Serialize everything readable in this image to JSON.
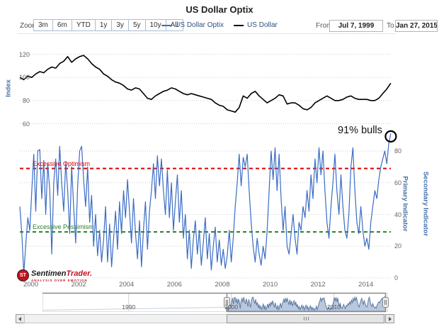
{
  "title": "US Dollar Optix",
  "toolbar": {
    "zoom_label": "Zoom",
    "buttons": [
      "3m",
      "6m",
      "YTD",
      "1y",
      "3y",
      "5y",
      "10y",
      "All"
    ],
    "from_label": "From",
    "from_value": "Jul 7, 1999",
    "to_label": "To",
    "to_value": "Jan 27, 2015"
  },
  "legend": [
    {
      "label": "US Dollar Optix",
      "color": "#3a6cc5"
    },
    {
      "label": "US Dollar",
      "color": "#000000"
    }
  ],
  "branding": {
    "badge": "ST",
    "name_main": "Sentimen",
    "name_accent": "Trader.",
    "tagline": "ANALYSIS OVER EMOTION"
  },
  "chart_data": {
    "type": "line",
    "title": "US Dollar Optix",
    "x_start_year": 1999.54,
    "x_end_year": 2015.07,
    "axes": {
      "index_pane": {
        "title": "Index",
        "ticks": [
          120,
          100,
          80,
          60
        ],
        "ylim": [
          60,
          125
        ]
      },
      "primary_pane": {
        "title": "Primary Indicator",
        "secondary_title": "Secondary Indicator",
        "ticks": [
          80,
          60,
          40,
          20,
          0
        ],
        "ylim": [
          0,
          95
        ]
      },
      "x_ticks": [
        2000,
        2002,
        2004,
        2006,
        2008,
        2010,
        2012,
        2014
      ],
      "navigator_ticks": [
        1990,
        2000,
        2010
      ]
    },
    "bands": {
      "optimism": {
        "label": "Excessive Optimism",
        "value": 69,
        "color": "#dd0000"
      },
      "pessimism": {
        "label": "Excessive Pessimism",
        "value": 29,
        "color": "#2a7d2a"
      }
    },
    "annotations": [
      {
        "text": "91% bulls",
        "x_year": 2015.04,
        "y": 91
      }
    ],
    "series": [
      {
        "name": "US Dollar Optix",
        "pane": "primary",
        "color": "#3a6cc5",
        "step_months": 1,
        "values": [
          45,
          28,
          3,
          22,
          38,
          30,
          55,
          78,
          42,
          80,
          81,
          50,
          74,
          40,
          72,
          55,
          15,
          60,
          75,
          52,
          83,
          60,
          42,
          73,
          55,
          28,
          70,
          45,
          22,
          58,
          80,
          83,
          62,
          45,
          70,
          35,
          52,
          20,
          40,
          14,
          30,
          10,
          24,
          45,
          10,
          34,
          7,
          25,
          42,
          18,
          48,
          28,
          55,
          38,
          62,
          42,
          22,
          50,
          28,
          12,
          36,
          7,
          30,
          48,
          18,
          42,
          55,
          72,
          50,
          77,
          58,
          75,
          55,
          40,
          68,
          38,
          60,
          30,
          48,
          65,
          35,
          55,
          25,
          40,
          12,
          30,
          6,
          24,
          36,
          15,
          30,
          8,
          22,
          38,
          12,
          28,
          5,
          20,
          32,
          10,
          24,
          8,
          18,
          6,
          14,
          30,
          10,
          25,
          45,
          60,
          78,
          58,
          76,
          70,
          78,
          55,
          35,
          20,
          10,
          25,
          15,
          8,
          20,
          12,
          30,
          55,
          80,
          62,
          82,
          55,
          78,
          50,
          30,
          45,
          20,
          15,
          28,
          40,
          25,
          15,
          35,
          30,
          45,
          38,
          55,
          42,
          65,
          50,
          75,
          60,
          82,
          65,
          80,
          55,
          35,
          25,
          45,
          60,
          78,
          55,
          40,
          65,
          45,
          30,
          25,
          40,
          70,
          82,
          55,
          35,
          28,
          45,
          30,
          20,
          25,
          18,
          35,
          45,
          55,
          50,
          62,
          70,
          75,
          80,
          72,
          85,
          91
        ]
      },
      {
        "name": "US Dollar",
        "pane": "index",
        "color": "#000000",
        "step_months": 2,
        "values": [
          100,
          98,
          101,
          100,
          103,
          105,
          104,
          107,
          109,
          108,
          112,
          114,
          118,
          113,
          116,
          118,
          119,
          116,
          112,
          109,
          107,
          103,
          101,
          98,
          96,
          95,
          93,
          90,
          89,
          91,
          90,
          86,
          82,
          81,
          84,
          86,
          88,
          89,
          91,
          90,
          88,
          86,
          85,
          86,
          85,
          84,
          83,
          82,
          81,
          78,
          76,
          75,
          72,
          71,
          70,
          74,
          84,
          82,
          86,
          88,
          84,
          81,
          78,
          80,
          82,
          85,
          84,
          77,
          78,
          78,
          76,
          73,
          72,
          74,
          78,
          80,
          82,
          84,
          82,
          80,
          80,
          81,
          83,
          84,
          82,
          81,
          81,
          81,
          80,
          80,
          82,
          86,
          90,
          95
        ]
      }
    ],
    "navigator": {
      "selected_range": [
        1999.54,
        2015.07
      ]
    }
  }
}
